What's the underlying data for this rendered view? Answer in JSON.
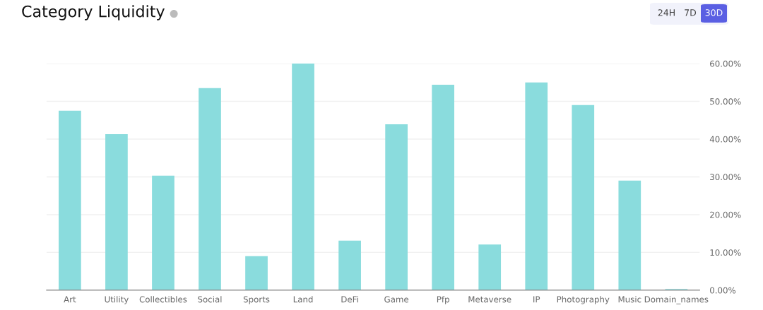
{
  "chart_data": {
    "type": "bar",
    "title": "Category Liquidity",
    "categories": [
      "Art",
      "Utility",
      "Collectibles",
      "Social",
      "Sports",
      "Land",
      "DeFi",
      "Game",
      "Pfp",
      "Metaverse",
      "IP",
      "Photography",
      "Music",
      "Domain_names"
    ],
    "values": [
      47.5,
      41.3,
      30.3,
      53.5,
      9.0,
      60.0,
      13.1,
      43.9,
      54.4,
      12.1,
      55.0,
      49.0,
      29.0,
      0.3
    ],
    "color": "#8adcdd",
    "ylim": [
      0,
      60
    ],
    "yticks": [
      {
        "value": 0,
        "label": "0.00%"
      },
      {
        "value": 10,
        "label": "10.00%"
      },
      {
        "value": 20,
        "label": "20.00%"
      },
      {
        "value": 30,
        "label": "30.00%"
      },
      {
        "value": 40,
        "label": "40.00%"
      },
      {
        "value": 50,
        "label": "50.00%"
      },
      {
        "value": 60,
        "label": "60.00%"
      }
    ],
    "grid": "y",
    "legend": false,
    "annotations": [
      "24H",
      "7D",
      "30D"
    ]
  }
}
